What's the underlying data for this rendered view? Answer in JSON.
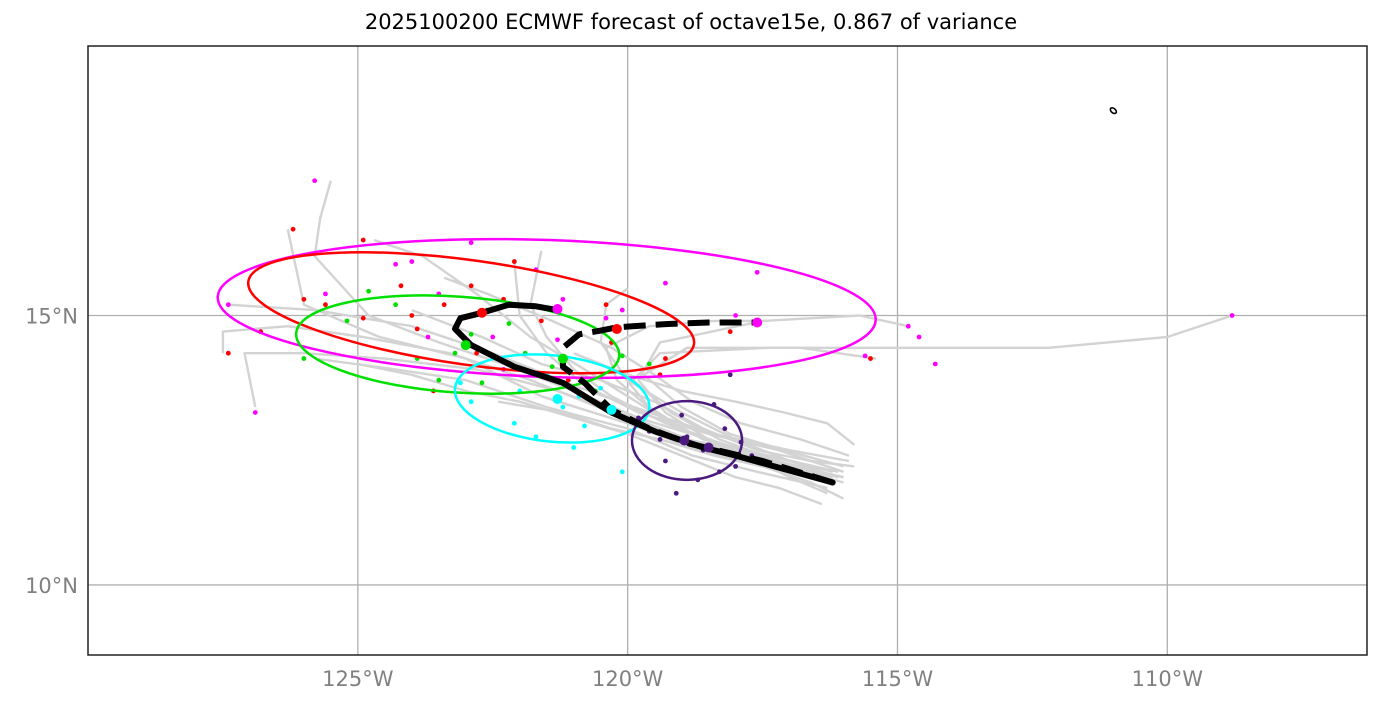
{
  "title": "2025100200 ECMWF forecast of octave15e, 0.867 of variance",
  "chart_data": {
    "type": "scatter",
    "title": "2025100200 ECMWF forecast of octave15e, 0.867 of variance",
    "xlabel": "",
    "ylabel": "",
    "xlim": [
      -130.0,
      -106.3
    ],
    "ylim": [
      8.7,
      20.0
    ],
    "grid": true,
    "x_ticks": [
      -125,
      -120,
      -115,
      -110
    ],
    "x_tick_labels": [
      "125°W",
      "120°W",
      "115°W",
      "110°W"
    ],
    "y_ticks": [
      15,
      10
    ],
    "y_tick_labels": [
      "15°N",
      "10°N"
    ],
    "colors": {
      "track": "#d3d3d3",
      "mean_track": "#000000",
      "day1": "#4b1a7f",
      "day2": "#00ffff",
      "day3": "#00e000",
      "day4": "#ff0000",
      "day5": "#ff00ff",
      "grid": "#b0b0b0",
      "frame": "#222222"
    },
    "mean_track_solid": {
      "x": [
        -116.2,
        -117.1,
        -118.0,
        -118.6,
        -119.5,
        -120.3,
        -121.2,
        -122.1,
        -122.9,
        -123.2,
        -123.1,
        -122.7,
        -122.2,
        -121.7,
        -121.3
      ],
      "y": [
        11.9,
        12.15,
        12.4,
        12.55,
        12.85,
        13.2,
        13.75,
        14.05,
        14.45,
        14.75,
        14.95,
        15.05,
        15.2,
        15.17,
        15.1
      ]
    },
    "mean_track_dashed": {
      "x": [
        -116.2,
        -117.5,
        -118.85,
        -119.6,
        -120.3,
        -120.8,
        -121.2,
        -121.2,
        -120.9,
        -120.5,
        -120.2,
        -119.3,
        -118.5,
        -117.6
      ],
      "y": [
        11.9,
        12.3,
        12.62,
        12.9,
        13.25,
        13.75,
        14.05,
        14.4,
        14.65,
        14.72,
        14.78,
        14.84,
        14.87,
        14.87
      ]
    },
    "mean_markers": [
      {
        "day": 1,
        "x": -118.5,
        "y": 12.55,
        "color": "#4b1a7f"
      },
      {
        "day": 1,
        "x": -118.95,
        "y": 12.68,
        "color": "#4b1a7f"
      },
      {
        "day": 2,
        "x": -121.3,
        "y": 13.45,
        "color": "#00ffff"
      },
      {
        "day": 2,
        "x": -120.3,
        "y": 13.25,
        "color": "#00ffff"
      },
      {
        "day": 3,
        "x": -123.0,
        "y": 14.45,
        "color": "#00e000"
      },
      {
        "day": 3,
        "x": -121.2,
        "y": 14.2,
        "color": "#00e000"
      },
      {
        "day": 4,
        "x": -122.7,
        "y": 15.05,
        "color": "#ff0000"
      },
      {
        "day": 4,
        "x": -120.2,
        "y": 14.75,
        "color": "#ff0000"
      },
      {
        "day": 5,
        "x": -121.3,
        "y": 15.12,
        "color": "#ff00ff"
      },
      {
        "day": 5,
        "x": -117.6,
        "y": 14.87,
        "color": "#ff00ff"
      }
    ],
    "ellipses": [
      {
        "name": "day5",
        "cx": -121.5,
        "cy": 15.13,
        "a_deg": 6.1,
        "b_deg": 1.27,
        "angle": 2,
        "color": "#ff00ff"
      },
      {
        "name": "day4",
        "cx": -122.9,
        "cy": 15.05,
        "a_deg": 4.17,
        "b_deg": 0.97,
        "angle": 8,
        "color": "#ff0000"
      },
      {
        "name": "day3",
        "cx": -123.15,
        "cy": 14.46,
        "a_deg": 3.0,
        "b_deg": 0.89,
        "angle": 4,
        "color": "#00e000"
      },
      {
        "name": "day2",
        "cx": -121.4,
        "cy": 13.46,
        "a_deg": 1.81,
        "b_deg": 0.8,
        "angle": 6,
        "color": "#00ffff"
      },
      {
        "name": "day1",
        "cx": -118.9,
        "cy": 12.68,
        "a_deg": 1.02,
        "b_deg": 0.73,
        "angle": 0,
        "color": "#4b1a7f"
      }
    ],
    "ensemble_tracks": [
      {
        "x": [
          -116.2,
          -117.2,
          -118.5,
          -119.8,
          -121.0,
          -122.3,
          -123.5,
          -124.8,
          -125.8,
          -125.7,
          -125.5
        ],
        "y": [
          11.9,
          12.3,
          12.7,
          13.1,
          13.6,
          14.1,
          14.5,
          15.0,
          16.1,
          16.8,
          17.5
        ]
      },
      {
        "x": [
          -116.0,
          -117.5,
          -118.7,
          -120.0,
          -121.6,
          -123.0,
          -124.6,
          -126.0,
          -126.3
        ],
        "y": [
          12.0,
          12.2,
          12.5,
          13.0,
          13.5,
          14.2,
          14.6,
          15.2,
          16.6
        ]
      },
      {
        "x": [
          -115.9,
          -117.0,
          -118.4,
          -119.6,
          -121.0,
          -122.5,
          -124.0,
          -125.8,
          -127.4
        ],
        "y": [
          12.3,
          12.5,
          12.8,
          13.2,
          13.7,
          14.3,
          14.8,
          15.1,
          15.2
        ]
      },
      {
        "x": [
          -116.1,
          -117.4,
          -118.9,
          -120.3,
          -121.8,
          -123.3,
          -124.9,
          -126.3,
          -127.5,
          -127.5
        ],
        "y": [
          12.1,
          12.4,
          12.7,
          13.2,
          13.8,
          14.3,
          14.6,
          14.8,
          14.7,
          14.3
        ]
      },
      {
        "x": [
          -116.0,
          -117.3,
          -118.6,
          -119.9,
          -121.3,
          -122.8,
          -124.5,
          -126.0,
          -127.1,
          -126.9
        ],
        "y": [
          12.0,
          12.3,
          12.6,
          13.1,
          13.6,
          14.0,
          14.2,
          14.3,
          14.3,
          13.3
        ]
      },
      {
        "x": [
          -116.3,
          -117.6,
          -118.8,
          -120.0,
          -121.5,
          -123.0,
          -124.3,
          -125.8
        ],
        "y": [
          11.8,
          12.1,
          12.4,
          12.9,
          13.3,
          13.8,
          14.0,
          14.2
        ]
      },
      {
        "x": [
          -116.2,
          -117.3,
          -118.3,
          -119.2,
          -120.0,
          -120.8,
          -121.8,
          -122.8,
          -123.8,
          -124.7
        ],
        "y": [
          12.0,
          12.3,
          12.6,
          13.0,
          13.5,
          14.0,
          14.6,
          15.4,
          16.1,
          16.4
        ]
      },
      {
        "x": [
          -116.0,
          -117.2,
          -118.5,
          -119.8,
          -120.8,
          -121.5,
          -122.0,
          -122.1
        ],
        "y": [
          12.1,
          12.5,
          12.8,
          13.2,
          13.7,
          14.3,
          15.0,
          16.0
        ]
      },
      {
        "x": [
          -116.1,
          -117.0,
          -118.0,
          -119.0,
          -120.0,
          -120.5,
          -120.4,
          -120.0
        ],
        "y": [
          12.0,
          12.3,
          12.7,
          13.2,
          13.8,
          14.5,
          15.2,
          15.5
        ]
      },
      {
        "x": [
          -116.0,
          -117.1,
          -118.2,
          -119.3,
          -120.3,
          -121.0,
          -121.5,
          -121.8,
          -121.6
        ],
        "y": [
          11.9,
          12.2,
          12.6,
          13.0,
          13.5,
          14.0,
          14.6,
          15.2,
          16.2
        ]
      },
      {
        "x": [
          -116.2,
          -117.4,
          -118.6,
          -119.5,
          -120.2,
          -120.4,
          -119.6,
          -118.4,
          -117.4
        ],
        "y": [
          12.1,
          12.4,
          12.7,
          13.2,
          13.8,
          14.4,
          14.8,
          14.9,
          14.9
        ]
      },
      {
        "x": [
          -116.3,
          -117.5,
          -118.5,
          -119.3,
          -119.8,
          -119.4,
          -117.5,
          -115.7,
          -114.8
        ],
        "y": [
          12.0,
          12.3,
          12.7,
          13.2,
          13.8,
          14.5,
          14.9,
          15.0,
          14.8
        ]
      },
      {
        "x": [
          -116.1,
          -117.2,
          -118.3,
          -119.2,
          -119.9,
          -119.4,
          -117.4,
          -115.2,
          -112.2,
          -110.0,
          -108.8
        ],
        "y": [
          12.0,
          12.3,
          12.7,
          13.2,
          13.8,
          14.3,
          14.4,
          14.4,
          14.4,
          14.6,
          15.0
        ]
      },
      {
        "x": [
          -116.0,
          -117.1,
          -118.1,
          -119.0,
          -119.7,
          -118.9,
          -116.8,
          -115.4
        ],
        "y": [
          12.2,
          12.5,
          12.8,
          13.3,
          13.9,
          14.4,
          14.4,
          14.2
        ]
      },
      {
        "x": [
          -115.9,
          -116.8,
          -117.9,
          -118.8,
          -119.5,
          -120.3,
          -121.4,
          -122.6,
          -123.4
        ],
        "y": [
          12.4,
          12.7,
          13.0,
          13.4,
          13.9,
          14.4,
          14.9,
          15.4,
          15.7
        ]
      },
      {
        "x": [
          -116.3,
          -117.0,
          -117.8,
          -118.8,
          -119.6,
          -120.1
        ],
        "y": [
          11.7,
          12.0,
          12.4,
          12.8,
          13.3,
          13.9
        ]
      },
      {
        "x": [
          -115.8,
          -116.3,
          -117.1,
          -118.0,
          -119.0,
          -120.0,
          -121.0
        ],
        "y": [
          12.6,
          13.0,
          13.2,
          13.4,
          13.6,
          13.9,
          14.3
        ]
      },
      {
        "x": [
          -116.0,
          -116.6,
          -117.5,
          -118.4,
          -119.4,
          -120.3,
          -121.2,
          -122.4
        ],
        "y": [
          11.6,
          11.9,
          12.2,
          12.4,
          12.7,
          12.9,
          13.2,
          13.4
        ]
      },
      {
        "x": [
          -116.4,
          -117.2,
          -118.0,
          -119.0,
          -120.0,
          -121.0,
          -122.0,
          -123.0,
          -124.0,
          -125.0
        ],
        "y": [
          11.5,
          11.8,
          12.0,
          12.4,
          12.8,
          13.1,
          13.4,
          13.6,
          13.9,
          14.1
        ]
      },
      {
        "x": [
          -115.8,
          -116.6,
          -117.6,
          -118.6,
          -119.5,
          -120.5,
          -121.6,
          -122.7,
          -124.0
        ],
        "y": [
          12.2,
          12.3,
          12.5,
          12.9,
          13.4,
          13.8,
          14.1,
          14.6,
          15.1
        ]
      }
    ],
    "ensemble_points": [
      {
        "day": 1,
        "x": -118.9,
        "y": 12.75
      },
      {
        "day": 1,
        "x": -118.6,
        "y": 12.5
      },
      {
        "day": 1,
        "x": -119.3,
        "y": 12.3
      },
      {
        "day": 1,
        "x": -118.2,
        "y": 12.9
      },
      {
        "day": 1,
        "x": -119.0,
        "y": 13.15
      },
      {
        "day": 1,
        "x": -118.4,
        "y": 13.35
      },
      {
        "day": 1,
        "x": -118.3,
        "y": 12.1
      },
      {
        "day": 1,
        "x": -119.4,
        "y": 12.7
      },
      {
        "day": 1,
        "x": -118.0,
        "y": 12.2
      },
      {
        "day": 1,
        "x": -119.1,
        "y": 11.7
      },
      {
        "day": 1,
        "x": -118.7,
        "y": 11.95
      },
      {
        "day": 1,
        "x": -117.7,
        "y": 12.4
      },
      {
        "day": 1,
        "x": -118.1,
        "y": 13.9
      },
      {
        "day": 1,
        "x": -119.6,
        "y": 12.85
      },
      {
        "day": 1,
        "x": -117.9,
        "y": 12.65
      },
      {
        "day": 1,
        "x": -119.8,
        "y": 13.1
      },
      {
        "day": 2,
        "x": -121.2,
        "y": 13.3
      },
      {
        "day": 2,
        "x": -120.8,
        "y": 12.95
      },
      {
        "day": 2,
        "x": -122.1,
        "y": 13.0
      },
      {
        "day": 2,
        "x": -121.7,
        "y": 12.75
      },
      {
        "day": 2,
        "x": -122.0,
        "y": 13.6
      },
      {
        "day": 2,
        "x": -120.5,
        "y": 13.65
      },
      {
        "day": 2,
        "x": -121.5,
        "y": 13.9
      },
      {
        "day": 2,
        "x": -122.9,
        "y": 13.4
      },
      {
        "day": 2,
        "x": -120.1,
        "y": 12.1
      },
      {
        "day": 2,
        "x": -123.1,
        "y": 13.75
      },
      {
        "day": 2,
        "x": -121.0,
        "y": 12.55
      },
      {
        "day": 2,
        "x": -120.9,
        "y": 13.5
      },
      {
        "day": 3,
        "x": -123.2,
        "y": 14.3
      },
      {
        "day": 3,
        "x": -122.9,
        "y": 14.65
      },
      {
        "day": 3,
        "x": -123.9,
        "y": 14.2
      },
      {
        "day": 3,
        "x": -124.3,
        "y": 15.2
      },
      {
        "day": 3,
        "x": -122.2,
        "y": 14.85
      },
      {
        "day": 3,
        "x": -121.4,
        "y": 14.05
      },
      {
        "day": 3,
        "x": -125.2,
        "y": 14.9
      },
      {
        "day": 3,
        "x": -123.5,
        "y": 13.8
      },
      {
        "day": 3,
        "x": -122.7,
        "y": 13.75
      },
      {
        "day": 3,
        "x": -124.8,
        "y": 15.45
      },
      {
        "day": 3,
        "x": -126.0,
        "y": 14.2
      },
      {
        "day": 3,
        "x": -120.1,
        "y": 14.25
      },
      {
        "day": 3,
        "x": -121.9,
        "y": 14.3
      },
      {
        "day": 3,
        "x": -119.6,
        "y": 14.1
      },
      {
        "day": 3,
        "x": -120.6,
        "y": 13.6
      },
      {
        "day": 3,
        "x": -122.6,
        "y": 15.1
      },
      {
        "day": 4,
        "x": -123.4,
        "y": 15.2
      },
      {
        "day": 4,
        "x": -122.3,
        "y": 15.3
      },
      {
        "day": 4,
        "x": -123.9,
        "y": 14.75
      },
      {
        "day": 4,
        "x": -124.2,
        "y": 15.55
      },
      {
        "day": 4,
        "x": -122.9,
        "y": 15.55
      },
      {
        "day": 4,
        "x": -124.9,
        "y": 14.95
      },
      {
        "day": 4,
        "x": -125.6,
        "y": 15.2
      },
      {
        "day": 4,
        "x": -126.0,
        "y": 15.3
      },
      {
        "day": 4,
        "x": -126.8,
        "y": 14.7
      },
      {
        "day": 4,
        "x": -127.4,
        "y": 14.3
      },
      {
        "day": 4,
        "x": -126.2,
        "y": 16.6
      },
      {
        "day": 4,
        "x": -124.9,
        "y": 16.4
      },
      {
        "day": 4,
        "x": -122.1,
        "y": 16.0
      },
      {
        "day": 4,
        "x": -123.6,
        "y": 13.6
      },
      {
        "day": 4,
        "x": -121.6,
        "y": 14.9
      },
      {
        "day": 4,
        "x": -120.4,
        "y": 15.2
      },
      {
        "day": 4,
        "x": -119.3,
        "y": 14.2
      },
      {
        "day": 4,
        "x": -118.1,
        "y": 14.7
      },
      {
        "day": 4,
        "x": -115.5,
        "y": 14.2
      },
      {
        "day": 4,
        "x": -119.4,
        "y": 13.9
      },
      {
        "day": 4,
        "x": -120.3,
        "y": 14.5
      },
      {
        "day": 4,
        "x": -121.1,
        "y": 13.8
      },
      {
        "day": 4,
        "x": -124.0,
        "y": 15.0
      },
      {
        "day": 4,
        "x": -122.8,
        "y": 14.3
      },
      {
        "day": 5,
        "x": -125.8,
        "y": 17.5
      },
      {
        "day": 5,
        "x": -127.4,
        "y": 15.2
      },
      {
        "day": 5,
        "x": -126.9,
        "y": 13.2
      },
      {
        "day": 5,
        "x": -124.3,
        "y": 15.95
      },
      {
        "day": 5,
        "x": -122.9,
        "y": 16.35
      },
      {
        "day": 5,
        "x": -121.7,
        "y": 15.85
      },
      {
        "day": 5,
        "x": -120.1,
        "y": 15.1
      },
      {
        "day": 5,
        "x": -118.0,
        "y": 15.0
      },
      {
        "day": 5,
        "x": -117.6,
        "y": 15.8
      },
      {
        "day": 5,
        "x": -114.8,
        "y": 14.8
      },
      {
        "day": 5,
        "x": -114.6,
        "y": 14.6
      },
      {
        "day": 5,
        "x": -114.3,
        "y": 14.1
      },
      {
        "day": 5,
        "x": -108.8,
        "y": 15.0
      },
      {
        "day": 5,
        "x": -119.3,
        "y": 15.6
      },
      {
        "day": 5,
        "x": -120.4,
        "y": 14.95
      },
      {
        "day": 5,
        "x": -121.2,
        "y": 15.3
      },
      {
        "day": 5,
        "x": -123.5,
        "y": 15.4
      },
      {
        "day": 5,
        "x": -122.5,
        "y": 14.6
      },
      {
        "day": 5,
        "x": -123.7,
        "y": 14.6
      },
      {
        "day": 5,
        "x": -125.6,
        "y": 15.4
      },
      {
        "day": 5,
        "x": -124.0,
        "y": 16.0
      },
      {
        "day": 5,
        "x": -122.3,
        "y": 14.0
      },
      {
        "day": 5,
        "x": -121.3,
        "y": 14.55
      },
      {
        "day": 5,
        "x": -115.6,
        "y": 14.25
      }
    ],
    "coastline_islet": {
      "x": -111.0,
      "y": 18.8
    }
  }
}
